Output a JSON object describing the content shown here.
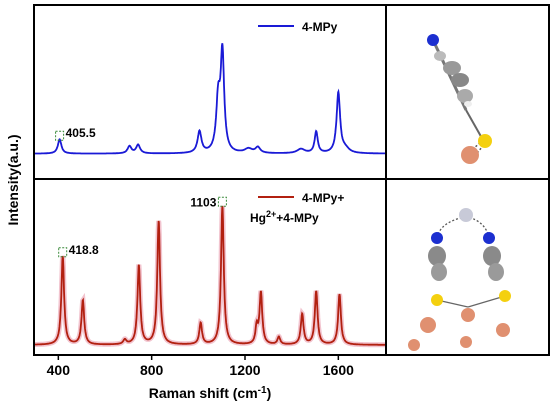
{
  "chart_data": {
    "type": "line",
    "xlabel_text": "Raman shift (cm",
    "xlabel_sup": "-1",
    "xlabel_close": ")",
    "ylabel": "Intensity(a.u.)",
    "xlim": [
      300,
      1800
    ],
    "xticks": [
      400,
      800,
      1200,
      1600
    ],
    "panels": [
      {
        "name": "4-MPy",
        "color": "#1a1ad6",
        "legend": [
          "4-MPy"
        ],
        "ylim": [
          0,
          1
        ],
        "baseline": 0.03,
        "peaks": [
          {
            "x": 405.5,
            "h": 0.1,
            "w": 9
          },
          {
            "x": 705,
            "h": 0.05,
            "w": 10
          },
          {
            "x": 742,
            "h": 0.06,
            "w": 10
          },
          {
            "x": 1005,
            "h": 0.15,
            "w": 10
          },
          {
            "x": 1085,
            "h": 0.35,
            "w": 10
          },
          {
            "x": 1103,
            "h": 0.68,
            "w": 9
          },
          {
            "x": 1215,
            "h": 0.03,
            "w": 20
          },
          {
            "x": 1255,
            "h": 0.04,
            "w": 12
          },
          {
            "x": 1440,
            "h": 0.03,
            "w": 20
          },
          {
            "x": 1505,
            "h": 0.15,
            "w": 8
          },
          {
            "x": 1600,
            "h": 0.42,
            "w": 9
          },
          {
            "x": 1630,
            "h": 0.03,
            "w": 20
          }
        ],
        "annotations": [
          {
            "text": "405.5",
            "x": 405.5
          }
        ]
      },
      {
        "name": "4-MPy+Hg2++4-MPy",
        "color": "#b22010",
        "legend_line1": "4-MPy+",
        "legend_line2_a": "Hg",
        "legend_line2_sup": "2+",
        "legend_line2_b": "+4-MPy",
        "ylim": [
          0,
          1
        ],
        "baseline": 0.02,
        "peaks": [
          {
            "x": 418.8,
            "h": 0.58,
            "w": 7
          },
          {
            "x": 505,
            "h": 0.29,
            "w": 7
          },
          {
            "x": 685,
            "h": 0.03,
            "w": 8
          },
          {
            "x": 745,
            "h": 0.52,
            "w": 7
          },
          {
            "x": 830,
            "h": 0.81,
            "w": 7
          },
          {
            "x": 1010,
            "h": 0.14,
            "w": 7
          },
          {
            "x": 1103,
            "h": 0.91,
            "w": 7
          },
          {
            "x": 1250,
            "h": 0.11,
            "w": 6
          },
          {
            "x": 1268,
            "h": 0.34,
            "w": 7
          },
          {
            "x": 1345,
            "h": 0.05,
            "w": 7
          },
          {
            "x": 1445,
            "h": 0.2,
            "w": 7
          },
          {
            "x": 1505,
            "h": 0.35,
            "w": 7
          },
          {
            "x": 1605,
            "h": 0.33,
            "w": 7
          }
        ],
        "annotations": [
          {
            "text": "418.8",
            "x": 418.8
          },
          {
            "text": "1103",
            "x": 1103
          }
        ]
      }
    ]
  }
}
